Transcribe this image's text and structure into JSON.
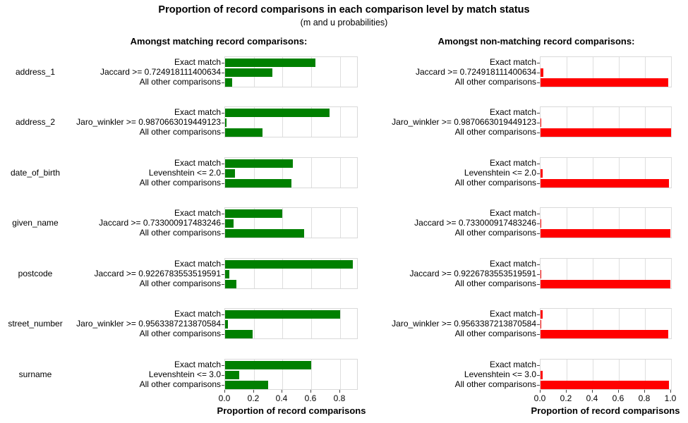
{
  "chart_data": {
    "type": "bar",
    "title": "Proportion of record comparisons in each comparison level by match status",
    "subtitle": "(m and u probabilities)",
    "panel_headers": {
      "matching": "Amongst matching record comparisons:",
      "non_matching": "Amongst non-matching record comparisons:"
    },
    "xlabel": "Proportion of record comparisons",
    "x_axis": {
      "matching": {
        "tick_labels": [
          "0.0",
          "0.2",
          "0.4",
          "0.6",
          "0.8"
        ],
        "domain": [
          0,
          0.92
        ]
      },
      "non_matching": {
        "tick_labels": [
          "0.0",
          "0.2",
          "0.4",
          "0.6",
          "0.8",
          "1.0"
        ],
        "domain": [
          0,
          1.0
        ]
      }
    },
    "colors": {
      "matching_bar": "#008000",
      "non_matching_bar": "#ff0000",
      "grid": "#dedede",
      "panel_border": "#d9d9d9"
    },
    "grid": true,
    "rows": [
      {
        "field": "address_1",
        "levels": [
          "Exact match",
          "Jaccard >= 0.724918111400634",
          "All other comparisons"
        ],
        "m_values": [
          0.63,
          0.33,
          0.05
        ],
        "u_values": [
          0.0,
          0.02,
          0.98
        ]
      },
      {
        "field": "address_2",
        "levels": [
          "Exact match",
          "Jaro_winkler >= 0.9870663019449123",
          "All other comparisons"
        ],
        "m_values": [
          0.73,
          0.01,
          0.26
        ],
        "u_values": [
          0.0,
          0.005,
          1.0
        ]
      },
      {
        "field": "date_of_birth",
        "levels": [
          "Exact match",
          "Levenshtein <= 2.0",
          "All other comparisons"
        ],
        "m_values": [
          0.47,
          0.07,
          0.46
        ],
        "u_values": [
          0.0,
          0.015,
          0.985
        ]
      },
      {
        "field": "given_name",
        "levels": [
          "Exact match",
          "Jaccard >= 0.733000917483246",
          "All other comparisons"
        ],
        "m_values": [
          0.4,
          0.06,
          0.55
        ],
        "u_values": [
          0.0,
          0.005,
          0.995
        ]
      },
      {
        "field": "postcode",
        "levels": [
          "Exact match",
          "Jaccard >= 0.9226783553519591",
          "All other comparisons"
        ],
        "m_values": [
          0.89,
          0.03,
          0.08
        ],
        "u_values": [
          0.0,
          0.005,
          0.995
        ]
      },
      {
        "field": "street_number",
        "levels": [
          "Exact match",
          "Jaro_winkler >= 0.9563387213870584",
          "All other comparisons"
        ],
        "m_values": [
          0.8,
          0.02,
          0.19
        ],
        "u_values": [
          0.015,
          0.005,
          0.98
        ]
      },
      {
        "field": "surname",
        "levels": [
          "Exact match",
          "Levenshtein <= 3.0",
          "All other comparisons"
        ],
        "m_values": [
          0.6,
          0.1,
          0.3
        ],
        "u_values": [
          0.0,
          0.015,
          0.985
        ]
      }
    ]
  }
}
